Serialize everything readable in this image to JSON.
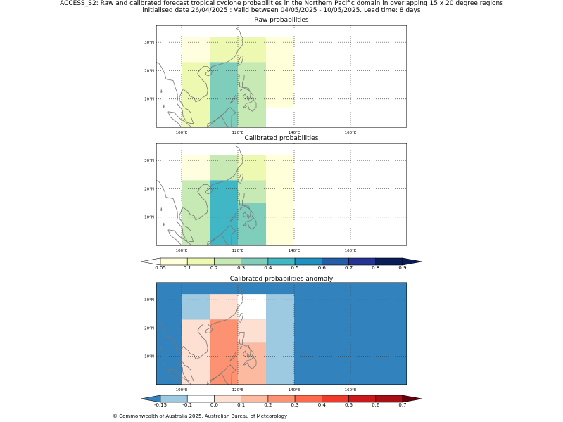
{
  "header": {
    "line1": "ACCESS_S2: Raw and calibrated forecast tropical cyclone probabilities in the Northern Pacific domain in overlapping 15 x 20 degree regions",
    "line2": "initialised date 26/04/2025 :  Valid between 04/05/2025 - 10/05/2025. Lead time: 8 days"
  },
  "panels": [
    {
      "title": "Raw probabilities",
      "cells": [
        {
          "lon0": 100,
          "lon1": 110,
          "lat0": 23,
          "lat1": 32,
          "color": "#ffffe0"
        },
        {
          "lon0": 110,
          "lon1": 120,
          "lat0": 23,
          "lat1": 32,
          "color": "#edf8b1"
        },
        {
          "lon0": 120,
          "lon1": 130,
          "lat0": 23,
          "lat1": 32,
          "color": "#edf8b1"
        },
        {
          "lon0": 130,
          "lon1": 140,
          "lat0": 7,
          "lat1": 32,
          "color": "#ffffd9"
        },
        {
          "lon0": 100,
          "lon1": 110,
          "lat0": 0,
          "lat1": 23,
          "color": "#edf8b1"
        },
        {
          "lon0": 110,
          "lon1": 120,
          "lat0": 0,
          "lat1": 23,
          "color": "#7fcdbb"
        },
        {
          "lon0": 120,
          "lon1": 130,
          "lat0": 0,
          "lat1": 23,
          "color": "#c7e9b4"
        }
      ]
    },
    {
      "title": "Calibrated probabilities",
      "cells": [
        {
          "lon0": 100,
          "lon1": 110,
          "lat0": 23,
          "lat1": 32,
          "color": "#ffffe0"
        },
        {
          "lon0": 110,
          "lon1": 120,
          "lat0": 23,
          "lat1": 32,
          "color": "#c7e9b4"
        },
        {
          "lon0": 120,
          "lon1": 130,
          "lat0": 23,
          "lat1": 32,
          "color": "#edf8b1"
        },
        {
          "lon0": 130,
          "lon1": 140,
          "lat0": 0,
          "lat1": 32,
          "color": "#ffffd9"
        },
        {
          "lon0": 100,
          "lon1": 110,
          "lat0": 0,
          "lat1": 23,
          "color": "#c7e9b4"
        },
        {
          "lon0": 110,
          "lon1": 120,
          "lat0": 0,
          "lat1": 23,
          "color": "#41b6c4"
        },
        {
          "lon0": 120,
          "lon1": 130,
          "lat0": 15,
          "lat1": 23,
          "color": "#c7e9b4"
        },
        {
          "lon0": 120,
          "lon1": 130,
          "lat0": 0,
          "lat1": 15,
          "color": "#7fcdbb"
        }
      ]
    },
    {
      "title": "Calibrated probabilities anomaly",
      "background": "#3182bd",
      "cells": [
        {
          "lon0": 100,
          "lon1": 110,
          "lat0": 23,
          "lat1": 32,
          "color": "#9ecae1"
        },
        {
          "lon0": 110,
          "lon1": 120,
          "lat0": 23,
          "lat1": 32,
          "color": "#fee0d2"
        },
        {
          "lon0": 120,
          "lon1": 130,
          "lat0": 23,
          "lat1": 32,
          "color": "#ffffff"
        },
        {
          "lon0": 130,
          "lon1": 140,
          "lat0": 0,
          "lat1": 32,
          "color": "#9ecae1"
        },
        {
          "lon0": 100,
          "lon1": 110,
          "lat0": 0,
          "lat1": 23,
          "color": "#fee0d2"
        },
        {
          "lon0": 110,
          "lon1": 120,
          "lat0": 0,
          "lat1": 23,
          "color": "#fc9272"
        },
        {
          "lon0": 120,
          "lon1": 130,
          "lat0": 15,
          "lat1": 23,
          "color": "#fee0d2"
        },
        {
          "lon0": 120,
          "lon1": 130,
          "lat0": 0,
          "lat1": 15,
          "color": "#fcbba1"
        }
      ]
    }
  ],
  "axes": {
    "lon_ticks": [
      {
        "v": 100,
        "label": "100°E"
      },
      {
        "v": 120,
        "label": "120°E"
      },
      {
        "v": 140,
        "label": "140°E"
      },
      {
        "v": 160,
        "label": "160°E"
      }
    ],
    "lat_ticks": [
      {
        "v": 10,
        "label": "10°N"
      },
      {
        "v": 20,
        "label": "20°N"
      },
      {
        "v": 30,
        "label": "30°N"
      }
    ],
    "lon_range": [
      91,
      180
    ],
    "lat_range": [
      0,
      36
    ]
  },
  "colorbars": [
    {
      "name": "probability",
      "colors": [
        "#ffffd9",
        "#edf8b1",
        "#c7e9b4",
        "#7fcdbb",
        "#41b6c4",
        "#1d91c0",
        "#225ea8",
        "#253494",
        "#081d58"
      ],
      "under": "#ffffff",
      "over": "#081d58",
      "labels": [
        "0.05",
        "0.1",
        "0.2",
        "0.3",
        "0.4",
        "0.5",
        "0.6",
        "0.7",
        "0.8",
        "0.9"
      ]
    },
    {
      "name": "anomaly",
      "colors": [
        "#9ecae1",
        "#ffffff",
        "#fee0d2",
        "#fcbba1",
        "#fc9272",
        "#fb6a4a",
        "#ef3b2c",
        "#cb181d",
        "#a50f15"
      ],
      "under": "#3182bd",
      "over": "#67000d",
      "labels": [
        "-0.15",
        "-0.1",
        "0.0",
        "0.1",
        "0.2",
        "0.3",
        "0.4",
        "0.5",
        "0.6",
        "0.7"
      ]
    }
  ],
  "footer": "© Commonwealth of Australia 2025, Australian Bureau of Meteorology"
}
